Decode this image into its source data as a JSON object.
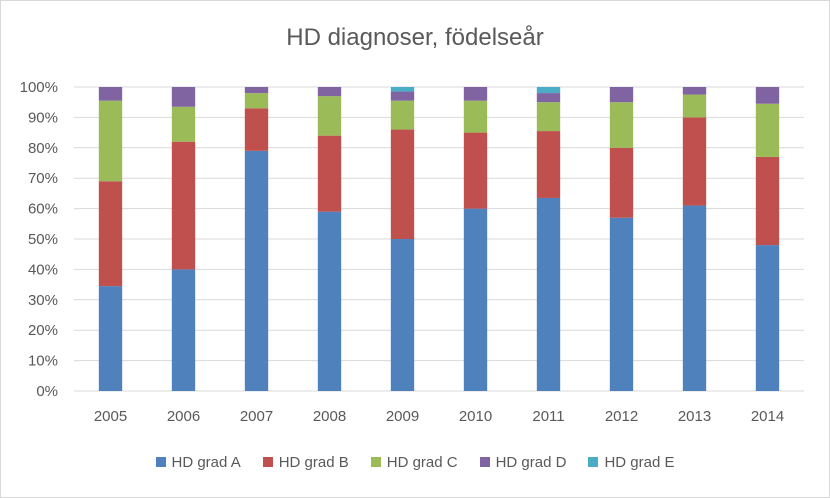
{
  "chart_data": {
    "type": "bar",
    "stacked": true,
    "title": "HD diagnoser, födelseår",
    "xlabel": "",
    "ylabel": "",
    "ylim": [
      0,
      100
    ],
    "y_tick_labels": [
      "0%",
      "10%",
      "20%",
      "30%",
      "40%",
      "50%",
      "60%",
      "70%",
      "80%",
      "90%",
      "100%"
    ],
    "grid": true,
    "legend_position": "bottom",
    "categories": [
      "2005",
      "2006",
      "2007",
      "2008",
      "2009",
      "2010",
      "2011",
      "2012",
      "2013",
      "2014"
    ],
    "series": [
      {
        "name": "HD grad A",
        "color": "#4f81bd",
        "values": [
          34.5,
          40,
          79,
          59,
          50,
          60,
          63.5,
          57,
          61,
          48
        ]
      },
      {
        "name": "HD grad B",
        "color": "#c0504d",
        "values": [
          34.5,
          42,
          14,
          25,
          36,
          25,
          22,
          23,
          29,
          29
        ]
      },
      {
        "name": "HD grad C",
        "color": "#9bbb59",
        "values": [
          26.5,
          11.5,
          5,
          13,
          9.5,
          10.5,
          9.5,
          15,
          7.5,
          17.5
        ]
      },
      {
        "name": "HD grad D",
        "color": "#8064a2",
        "values": [
          4.5,
          6.5,
          2,
          3,
          3,
          4.5,
          3,
          5,
          2.5,
          5.5
        ]
      },
      {
        "name": "HD grad E",
        "color": "#4bacc6",
        "values": [
          0,
          0,
          0,
          0,
          1.5,
          0,
          2,
          0,
          0,
          0
        ]
      }
    ]
  }
}
